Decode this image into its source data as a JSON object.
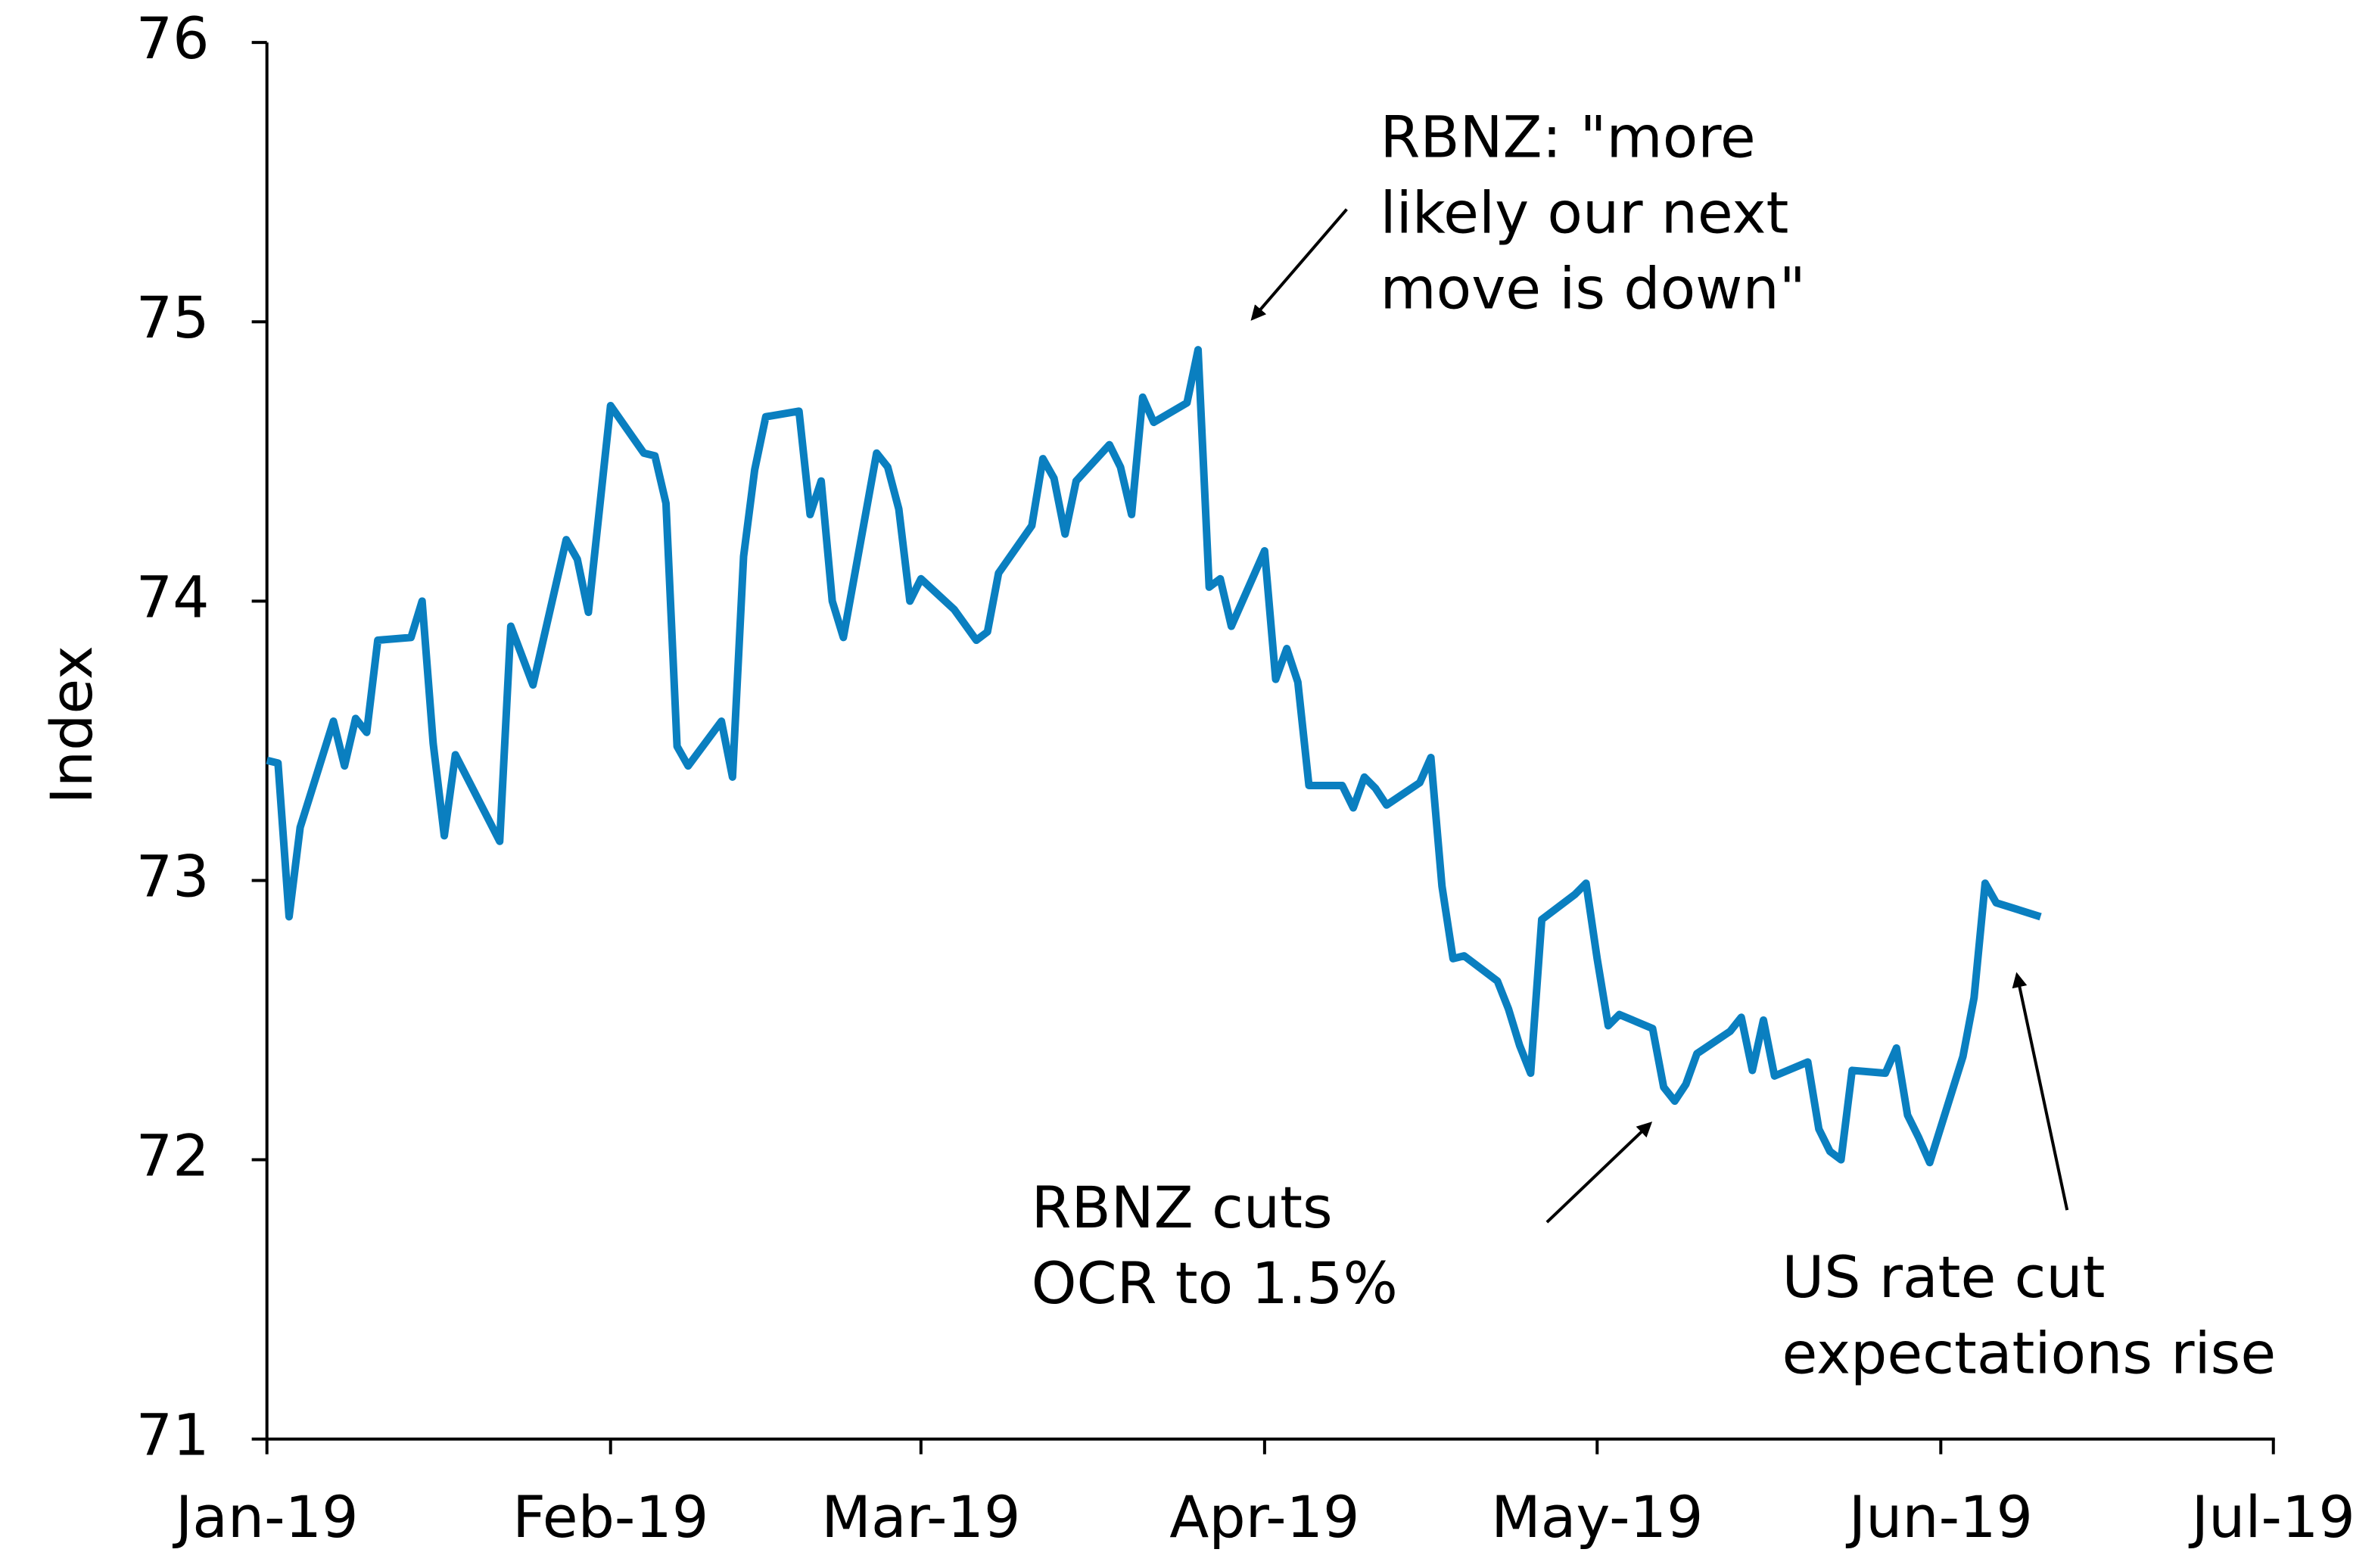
{
  "chart_data": {
    "type": "line",
    "y_label": "Index",
    "x": [
      0,
      1,
      2,
      3,
      6,
      7,
      8,
      9,
      10,
      13,
      14,
      15,
      16,
      17,
      21,
      22,
      24,
      27,
      28,
      29,
      31,
      34,
      35,
      36,
      37,
      38,
      41,
      42,
      43,
      44,
      45,
      48,
      49,
      50,
      51,
      52,
      55,
      56,
      57,
      58,
      59,
      62,
      64,
      65,
      66,
      69,
      70,
      71,
      72,
      73,
      76,
      77,
      78,
      79,
      80,
      83,
      84,
      85,
      86,
      87,
      90,
      91,
      92,
      93,
      94,
      97,
      98,
      99,
      100,
      101,
      104,
      105,
      106,
      107,
      108,
      111,
      112,
      113,
      114,
      115,
      118,
      119,
      120,
      121,
      122,
      125,
      126,
      127,
      128,
      129,
      132,
      133,
      134,
      135,
      136,
      139,
      140,
      141,
      142,
      143,
      146,
      147,
      148,
      149,
      150,
      153,
      154,
      155,
      156,
      160
    ],
    "series": [
      {
        "name": "Index",
        "color": "#0a7fc0",
        "values": [
          73.43,
          73.42,
          72.87,
          73.19,
          73.57,
          73.41,
          73.58,
          73.53,
          73.86,
          73.87,
          74.0,
          73.49,
          73.16,
          73.45,
          73.14,
          73.91,
          73.7,
          74.22,
          74.15,
          73.96,
          74.7,
          74.53,
          74.52,
          74.35,
          73.48,
          73.41,
          73.57,
          73.37,
          74.16,
          74.47,
          74.66,
          74.68,
          74.31,
          74.43,
          74.0,
          73.87,
          74.53,
          74.48,
          74.33,
          74.0,
          74.08,
          73.97,
          73.86,
          73.89,
          74.1,
          74.27,
          74.51,
          74.44,
          74.24,
          74.43,
          74.56,
          74.48,
          74.31,
          74.73,
          74.64,
          74.71,
          74.9,
          74.05,
          74.08,
          73.91,
          74.18,
          73.72,
          73.83,
          73.71,
          73.34,
          73.34,
          73.26,
          73.37,
          73.33,
          73.27,
          73.35,
          73.44,
          72.98,
          72.72,
          72.73,
          72.64,
          72.54,
          72.41,
          72.31,
          72.86,
          72.95,
          72.99,
          72.72,
          72.48,
          72.52,
          72.47,
          72.26,
          72.21,
          72.27,
          72.38,
          72.46,
          72.51,
          72.32,
          72.5,
          72.3,
          72.35,
          72.11,
          72.03,
          72.0,
          72.32,
          72.31,
          72.4,
          72.16,
          72.08,
          71.99,
          72.37,
          72.58,
          72.99,
          72.92,
          72.87
        ]
      }
    ],
    "xlim": [
      0,
      181
    ],
    "xticks": [
      {
        "value": 0,
        "label": "Jan-19"
      },
      {
        "value": 31,
        "label": "Feb-19"
      },
      {
        "value": 59,
        "label": "Mar-19"
      },
      {
        "value": 90,
        "label": "Apr-19"
      },
      {
        "value": 120,
        "label": "May-19"
      },
      {
        "value": 151,
        "label": "Jun-19"
      },
      {
        "value": 181,
        "label": "Jul-19"
      }
    ],
    "ylim": [
      71,
      76
    ],
    "yticks": [
      71,
      72,
      73,
      74,
      75,
      76
    ],
    "annotations": [
      {
        "lines": [
          "RBNZ: \"more",
          "likely our next",
          "move is down\""
        ]
      },
      {
        "lines": [
          "RBNZ cuts",
          "OCR to 1.5%"
        ]
      },
      {
        "lines": [
          "US rate cut",
          "expectations rise"
        ]
      }
    ]
  }
}
